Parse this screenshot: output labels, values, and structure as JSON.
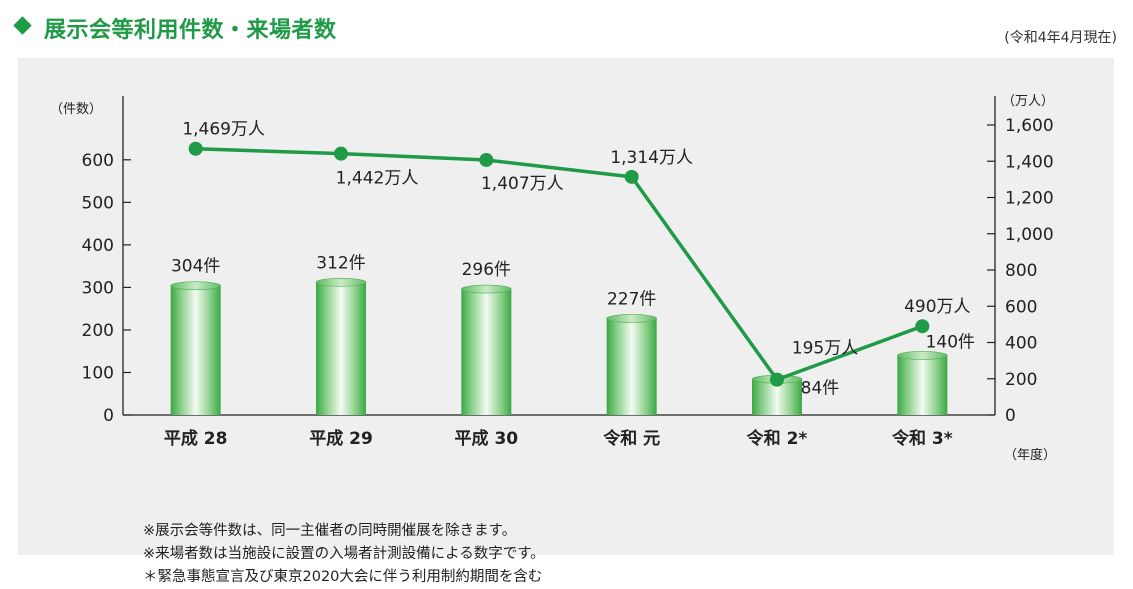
{
  "header": {
    "title": "展示会等利用件数・来場者数",
    "as_of": "(令和4年4月現在)"
  },
  "chart_data": {
    "type": "bar",
    "categories": [
      "平成 28",
      "平成 29",
      "平成 30",
      "令和 元",
      "令和 2*",
      "令和 3*"
    ],
    "bar_series": {
      "values": [
        304,
        312,
        296,
        227,
        84,
        140
      ],
      "labels": [
        "304件",
        "312件",
        "296件",
        "227件",
        "84件",
        "140件"
      ],
      "axis": "left",
      "color": "#3ab54a"
    },
    "line_series": {
      "type": "line",
      "values": [
        1469,
        1442,
        1407,
        1314,
        195,
        490
      ],
      "labels": [
        "1,469万人",
        "1,442万人",
        "1,407万人",
        "1,314万人",
        "195万人",
        "490万人"
      ],
      "axis": "right",
      "color": "#1f9a46"
    },
    "left_axis": {
      "unit_label": "（件数）",
      "ylim": [
        0,
        750
      ],
      "ticks": [
        "0",
        "100",
        "200",
        "300",
        "400",
        "500",
        "600"
      ],
      "tick_values": [
        0,
        100,
        200,
        300,
        400,
        500,
        600
      ]
    },
    "right_axis": {
      "unit_label": "（万人）",
      "ylim": [
        0,
        1760
      ],
      "ticks": [
        "0",
        "200",
        "400",
        "600",
        "800",
        "1,000",
        "1,200",
        "1,400",
        "1,600"
      ],
      "tick_values": [
        0,
        200,
        400,
        600,
        800,
        1000,
        1200,
        1400,
        1600
      ]
    },
    "x_unit_label": "（年度）",
    "grid": false
  },
  "notes": [
    "※展示会等件数は、同一主催者の同時開催展を除きます。",
    "※来場者数は当施設に設置の入場者計測設備による数字です。",
    "＊緊急事態宣言及び東京2020大会に伴う利用制約期間を含む"
  ]
}
